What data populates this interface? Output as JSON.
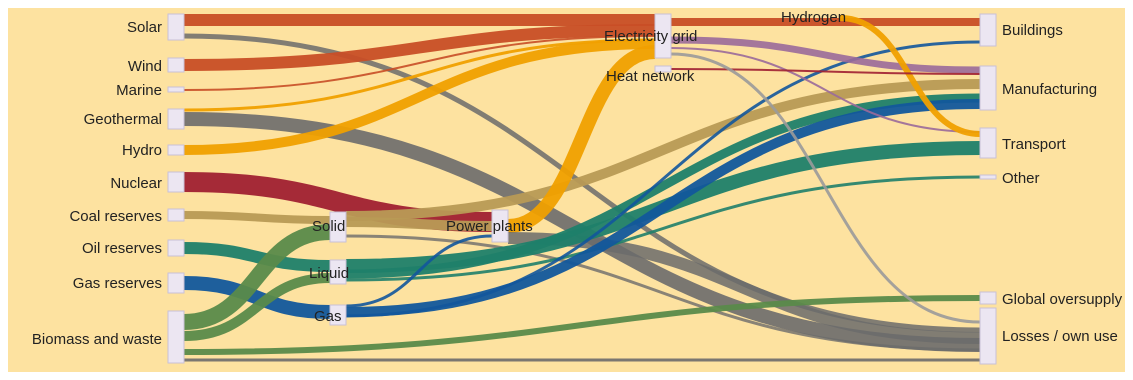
{
  "colors": {
    "background": "#fde2a0",
    "frame": "#ffffff",
    "node": "#ece6f2",
    "solar": "#c84e26",
    "wind": "#c84e26",
    "hydro": "#f0a000",
    "geothermal": "#6b6b6b",
    "nuclear": "#a02032",
    "coal": "#b89a55",
    "oil": "#1f7f6a",
    "gas": "#12579c",
    "biomass": "#5a8a4a",
    "losses": "#6b6b6b",
    "hydrogen": "#9a6a9a",
    "grey_thin": "#9a9a9a"
  },
  "nodes": {
    "sources": {
      "solar": "Solar",
      "wind": "Wind",
      "marine": "Marine",
      "geothermal": "Geothermal",
      "hydro": "Hydro",
      "nuclear": "Nuclear",
      "coal": "Coal reserves",
      "oil": "Oil reserves",
      "gas": "Gas reserves",
      "biomass": "Biomass and waste"
    },
    "intermediate": {
      "solid": "Solid",
      "liquid": "Liquid",
      "gas": "Gas",
      "power_plants": "Power plants",
      "electricity_grid": "Electricity grid",
      "heat_network": "Heat network",
      "hydrogen": "Hydrogen"
    },
    "sinks": {
      "buildings": "Buildings",
      "manufacturing": "Manufacturing",
      "transport": "Transport",
      "other": "Other",
      "global_oversupply": "Global oversupply",
      "losses": "Losses / own use"
    }
  }
}
